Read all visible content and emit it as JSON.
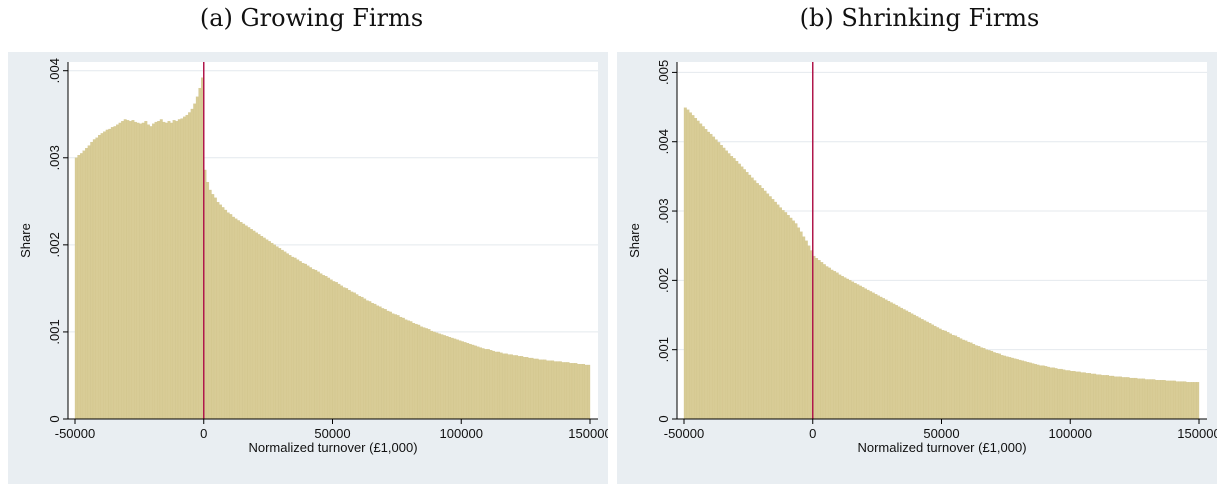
{
  "chart_data": [
    {
      "type": "bar",
      "caption": "(a) Growing Firms",
      "xlabel": "Normalized turnover (£1,000)",
      "ylabel": "Share",
      "xlim": [
        -50000,
        150000
      ],
      "ylim": [
        0,
        0.0041
      ],
      "xticks": [
        -50000,
        0,
        50000,
        100000,
        150000
      ],
      "xtick_labels": [
        "-50000",
        "0",
        "50000",
        "100000",
        "150000"
      ],
      "yticks": [
        0,
        0.001,
        0.002,
        0.003,
        0.004
      ],
      "ytick_labels": [
        "0",
        ".001",
        ".002",
        ".003",
        ".004"
      ],
      "grid": true,
      "vline_x": 0,
      "bin_width": 1000,
      "values": [
        0.003,
        0.00303,
        0.00305,
        0.00308,
        0.00311,
        0.00314,
        0.00318,
        0.00321,
        0.00323,
        0.00326,
        0.00328,
        0.0033,
        0.00332,
        0.00333,
        0.00335,
        0.00336,
        0.00338,
        0.0034,
        0.00342,
        0.00344,
        0.00343,
        0.00342,
        0.00343,
        0.00341,
        0.0034,
        0.00339,
        0.0034,
        0.00342,
        0.00338,
        0.00336,
        0.00339,
        0.00341,
        0.00342,
        0.00344,
        0.00341,
        0.0034,
        0.00342,
        0.0034,
        0.00343,
        0.00342,
        0.00344,
        0.00345,
        0.00347,
        0.00349,
        0.00352,
        0.00356,
        0.00362,
        0.0037,
        0.0038,
        0.00392,
        0.00286,
        0.00272,
        0.00263,
        0.00258,
        0.00254,
        0.00249,
        0.00246,
        0.00243,
        0.0024,
        0.00237,
        0.00235,
        0.00232,
        0.0023,
        0.00228,
        0.00226,
        0.00224,
        0.00222,
        0.0022,
        0.00218,
        0.00216,
        0.00214,
        0.00212,
        0.0021,
        0.00208,
        0.00206,
        0.00204,
        0.00202,
        0.002,
        0.00198,
        0.00196,
        0.00194,
        0.00192,
        0.0019,
        0.00188,
        0.00186,
        0.00185,
        0.00183,
        0.00181,
        0.00179,
        0.00178,
        0.00176,
        0.00174,
        0.00172,
        0.00171,
        0.00169,
        0.00167,
        0.00165,
        0.00164,
        0.00162,
        0.0016,
        0.00158,
        0.00157,
        0.00155,
        0.00153,
        0.00151,
        0.0015,
        0.00148,
        0.00146,
        0.00145,
        0.00143,
        0.00141,
        0.0014,
        0.00138,
        0.00136,
        0.00135,
        0.00133,
        0.00132,
        0.0013,
        0.00129,
        0.00127,
        0.00126,
        0.00124,
        0.00123,
        0.00121,
        0.0012,
        0.00119,
        0.00117,
        0.00116,
        0.00114,
        0.00113,
        0.00112,
        0.0011,
        0.00109,
        0.00108,
        0.00106,
        0.00105,
        0.00104,
        0.00103,
        0.00101,
        0.001,
        0.00099,
        0.00098,
        0.00097,
        0.00096,
        0.00095,
        0.00094,
        0.00093,
        0.00092,
        0.00091,
        0.0009,
        0.00089,
        0.00088,
        0.00087,
        0.00086,
        0.00085,
        0.00084,
        0.00083,
        0.00082,
        0.00081,
        0.0008,
        0.0008,
        0.00079,
        0.00078,
        0.00077,
        0.00077,
        0.00076,
        0.00075,
        0.00075,
        0.00074,
        0.00074,
        0.00073,
        0.00073,
        0.00072,
        0.00072,
        0.00071,
        0.00071,
        0.0007,
        0.0007,
        0.00069,
        0.00069,
        0.00068,
        0.00068,
        0.00068,
        0.00067,
        0.00067,
        0.00067,
        0.00066,
        0.00066,
        0.00066,
        0.00065,
        0.00065,
        0.00065,
        0.00064,
        0.00064,
        0.00064,
        0.00063,
        0.00063,
        0.00063,
        0.00062,
        0.00062
      ]
    },
    {
      "type": "bar",
      "caption": "(b) Shrinking Firms",
      "xlabel": "Normalized turnover (£1,000)",
      "ylabel": "Share",
      "xlim": [
        -50000,
        150000
      ],
      "ylim": [
        0,
        0.00515
      ],
      "xticks": [
        -50000,
        0,
        50000,
        100000,
        150000
      ],
      "xtick_labels": [
        "-50000",
        "0",
        "50000",
        "100000",
        "150000"
      ],
      "yticks": [
        0,
        0.001,
        0.002,
        0.003,
        0.004,
        0.005
      ],
      "ytick_labels": [
        "0",
        ".001",
        ".002",
        ".003",
        ".004",
        ".005"
      ],
      "grid": true,
      "vline_x": 0,
      "bin_width": 1000,
      "values": [
        0.00449,
        0.00446,
        0.00442,
        0.00438,
        0.00434,
        0.0043,
        0.00426,
        0.00422,
        0.00418,
        0.00414,
        0.00411,
        0.00407,
        0.00403,
        0.00399,
        0.00395,
        0.00391,
        0.00387,
        0.00383,
        0.00379,
        0.00376,
        0.00372,
        0.00368,
        0.00364,
        0.0036,
        0.00356,
        0.00352,
        0.00348,
        0.00344,
        0.0034,
        0.00337,
        0.00333,
        0.00329,
        0.00325,
        0.00321,
        0.00317,
        0.00313,
        0.00309,
        0.00305,
        0.00301,
        0.00298,
        0.00294,
        0.0029,
        0.00286,
        0.00282,
        0.00276,
        0.0027,
        0.00263,
        0.00257,
        0.0025,
        0.00243,
        0.00235,
        0.00232,
        0.00229,
        0.00226,
        0.00223,
        0.0022,
        0.00218,
        0.00215,
        0.00213,
        0.00211,
        0.00208,
        0.00206,
        0.00204,
        0.00202,
        0.002,
        0.00198,
        0.00196,
        0.00194,
        0.00192,
        0.0019,
        0.00188,
        0.00186,
        0.00184,
        0.00182,
        0.0018,
        0.00178,
        0.00176,
        0.00174,
        0.00172,
        0.0017,
        0.00168,
        0.00166,
        0.00164,
        0.00162,
        0.0016,
        0.00158,
        0.00156,
        0.00154,
        0.00152,
        0.0015,
        0.00148,
        0.00146,
        0.00144,
        0.00142,
        0.0014,
        0.00138,
        0.00136,
        0.00134,
        0.00132,
        0.0013,
        0.00128,
        0.00127,
        0.00125,
        0.00123,
        0.00121,
        0.0012,
        0.00118,
        0.00116,
        0.00114,
        0.00113,
        0.00111,
        0.0011,
        0.00108,
        0.00106,
        0.00105,
        0.00103,
        0.00102,
        0.001,
        0.00099,
        0.00098,
        0.00096,
        0.00095,
        0.00094,
        0.00092,
        0.00091,
        0.0009,
        0.00089,
        0.00088,
        0.00087,
        0.00086,
        0.00085,
        0.00084,
        0.00083,
        0.00082,
        0.00081,
        0.0008,
        0.00079,
        0.00078,
        0.00077,
        0.00077,
        0.00076,
        0.00075,
        0.00074,
        0.00074,
        0.00073,
        0.00072,
        0.00072,
        0.00071,
        0.0007,
        0.0007,
        0.00069,
        0.00069,
        0.00068,
        0.00068,
        0.00067,
        0.00067,
        0.00066,
        0.00066,
        0.00065,
        0.00065,
        0.00064,
        0.00064,
        0.00063,
        0.00063,
        0.00063,
        0.00062,
        0.00062,
        0.00061,
        0.00061,
        0.00061,
        0.0006,
        0.0006,
        0.0006,
        0.00059,
        0.00059,
        0.00059,
        0.00058,
        0.00058,
        0.00058,
        0.00057,
        0.00057,
        0.00057,
        0.00057,
        0.00056,
        0.00056,
        0.00056,
        0.00056,
        0.00055,
        0.00055,
        0.00055,
        0.00055,
        0.00054,
        0.00054,
        0.00054,
        0.00054,
        0.00053,
        0.00053,
        0.00053,
        0.00053,
        0.00053
      ]
    }
  ],
  "colors": {
    "panel_bg": "#e9eef2",
    "plot_bg": "#ffffff",
    "bar_fill": "#d8cc96",
    "bar_edge": "#cfc288",
    "vline": "#b0174b",
    "grid": "#e4e9ee"
  }
}
